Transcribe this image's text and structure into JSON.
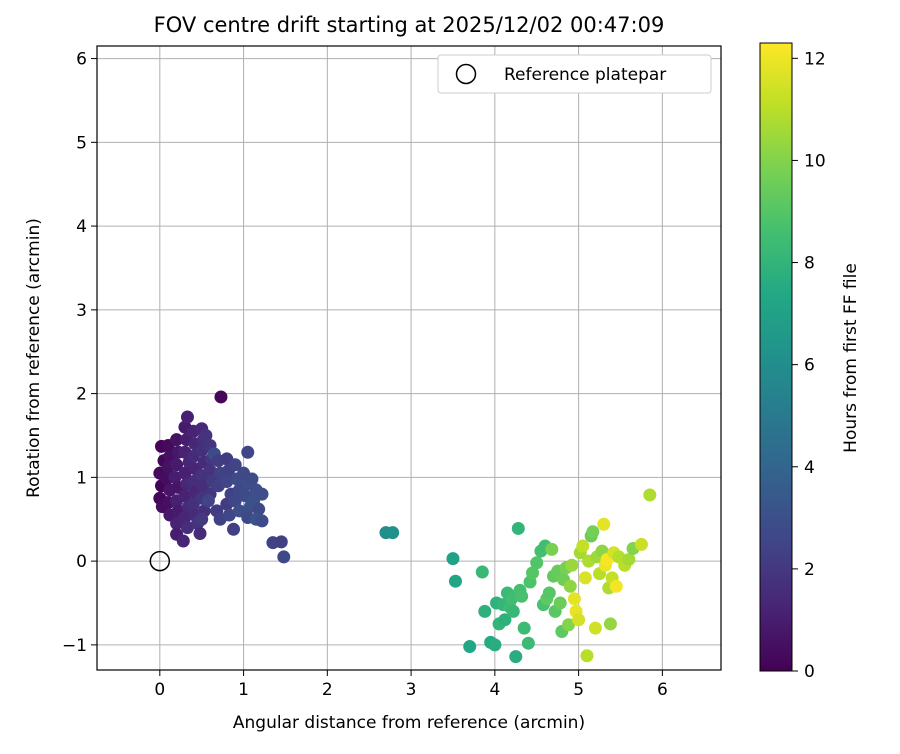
{
  "chart_data": {
    "type": "scatter",
    "title": "FOV centre drift starting at 2025/12/02 00:47:09",
    "xlabel": "Angular distance from reference (arcmin)",
    "ylabel": "Rotation from reference (arcmin)",
    "xlim": [
      -0.75,
      6.7
    ],
    "ylim": [
      -1.3,
      6.15
    ],
    "xticks": [
      0,
      1,
      2,
      3,
      4,
      5,
      6
    ],
    "yticks": [
      -1,
      0,
      1,
      2,
      3,
      4,
      5,
      6
    ],
    "xtick_labels": [
      "0",
      "1",
      "2",
      "3",
      "4",
      "5",
      "6"
    ],
    "ytick_labels": [
      "−1",
      "0",
      "1",
      "2",
      "3",
      "4",
      "5",
      "6"
    ],
    "grid": true,
    "legend": {
      "position": "top-right",
      "entries": [
        "Reference platepar"
      ]
    },
    "reference_point": {
      "label": "Reference platepar",
      "x": 0,
      "y": 0
    },
    "colorbar": {
      "label": "Hours from first FF file",
      "range": [
        0,
        12.3
      ],
      "ticks": [
        0,
        2,
        4,
        6,
        8,
        10,
        12
      ],
      "tick_labels": [
        "0",
        "2",
        "4",
        "6",
        "8",
        "10",
        "12"
      ],
      "colormap": "viridis"
    },
    "series": [
      {
        "name": "FOV centre",
        "points": [
          {
            "x": 0.73,
            "y": 1.96,
            "t": 0.2
          },
          {
            "x": 0.02,
            "y": 1.37,
            "t": 0.1
          },
          {
            "x": 0.05,
            "y": 1.2,
            "t": 0.2
          },
          {
            "x": 0.0,
            "y": 1.05,
            "t": 0.3
          },
          {
            "x": 0.02,
            "y": 0.9,
            "t": 0.1
          },
          {
            "x": 0.0,
            "y": 0.75,
            "t": 0.2
          },
          {
            "x": 0.03,
            "y": 0.65,
            "t": 0.4
          },
          {
            "x": 0.1,
            "y": 1.38,
            "t": 0.3
          },
          {
            "x": 0.12,
            "y": 1.25,
            "t": 0.5
          },
          {
            "x": 0.1,
            "y": 1.12,
            "t": 0.6
          },
          {
            "x": 0.08,
            "y": 0.98,
            "t": 0.4
          },
          {
            "x": 0.12,
            "y": 0.85,
            "t": 0.7
          },
          {
            "x": 0.1,
            "y": 0.7,
            "t": 0.5
          },
          {
            "x": 0.12,
            "y": 0.55,
            "t": 0.8
          },
          {
            "x": 0.2,
            "y": 1.45,
            "t": 0.6
          },
          {
            "x": 0.22,
            "y": 1.3,
            "t": 0.8
          },
          {
            "x": 0.2,
            "y": 1.15,
            "t": 0.9
          },
          {
            "x": 0.18,
            "y": 1.0,
            "t": 1.0
          },
          {
            "x": 0.22,
            "y": 0.88,
            "t": 0.7
          },
          {
            "x": 0.2,
            "y": 0.72,
            "t": 1.1
          },
          {
            "x": 0.22,
            "y": 0.6,
            "t": 0.9
          },
          {
            "x": 0.2,
            "y": 0.45,
            "t": 1.2
          },
          {
            "x": 0.2,
            "y": 0.32,
            "t": 1.0
          },
          {
            "x": 0.28,
            "y": 0.24,
            "t": 1.3
          },
          {
            "x": 0.3,
            "y": 1.6,
            "t": 0.9
          },
          {
            "x": 0.33,
            "y": 1.72,
            "t": 1.1
          },
          {
            "x": 0.32,
            "y": 1.45,
            "t": 1.0
          },
          {
            "x": 0.3,
            "y": 1.3,
            "t": 1.2
          },
          {
            "x": 0.35,
            "y": 1.18,
            "t": 1.3
          },
          {
            "x": 0.3,
            "y": 1.05,
            "t": 1.1
          },
          {
            "x": 0.32,
            "y": 0.92,
            "t": 1.4
          },
          {
            "x": 0.3,
            "y": 0.78,
            "t": 1.2
          },
          {
            "x": 0.34,
            "y": 0.65,
            "t": 1.5
          },
          {
            "x": 0.3,
            "y": 0.52,
            "t": 1.3
          },
          {
            "x": 0.33,
            "y": 0.4,
            "t": 1.6
          },
          {
            "x": 0.4,
            "y": 1.55,
            "t": 1.2
          },
          {
            "x": 0.42,
            "y": 1.4,
            "t": 1.4
          },
          {
            "x": 0.4,
            "y": 1.25,
            "t": 1.5
          },
          {
            "x": 0.43,
            "y": 1.1,
            "t": 1.3
          },
          {
            "x": 0.4,
            "y": 0.95,
            "t": 1.6
          },
          {
            "x": 0.42,
            "y": 0.82,
            "t": 1.4
          },
          {
            "x": 0.4,
            "y": 0.68,
            "t": 1.7
          },
          {
            "x": 0.42,
            "y": 0.55,
            "t": 1.5
          },
          {
            "x": 0.45,
            "y": 0.45,
            "t": 1.8
          },
          {
            "x": 0.5,
            "y": 1.58,
            "t": 1.4
          },
          {
            "x": 0.52,
            "y": 1.45,
            "t": 1.6
          },
          {
            "x": 0.5,
            "y": 1.32,
            "t": 1.7
          },
          {
            "x": 0.53,
            "y": 1.18,
            "t": 1.5
          },
          {
            "x": 0.5,
            "y": 1.02,
            "t": 1.8
          },
          {
            "x": 0.52,
            "y": 0.9,
            "t": 1.6
          },
          {
            "x": 0.5,
            "y": 0.75,
            "t": 1.9
          },
          {
            "x": 0.53,
            "y": 0.6,
            "t": 1.7
          },
          {
            "x": 0.5,
            "y": 0.5,
            "t": 2.0
          },
          {
            "x": 0.48,
            "y": 0.33,
            "t": 1.5
          },
          {
            "x": 0.55,
            "y": 1.5,
            "t": 1.8
          },
          {
            "x": 0.6,
            "y": 1.38,
            "t": 1.9
          },
          {
            "x": 0.62,
            "y": 1.22,
            "t": 2.0
          },
          {
            "x": 0.6,
            "y": 1.08,
            "t": 1.8
          },
          {
            "x": 0.63,
            "y": 0.95,
            "t": 2.1
          },
          {
            "x": 0.6,
            "y": 0.8,
            "t": 1.9
          },
          {
            "x": 0.58,
            "y": 0.72,
            "t": 2.5
          },
          {
            "x": 0.65,
            "y": 1.28,
            "t": 2.8
          },
          {
            "x": 0.7,
            "y": 1.2,
            "t": 2.2
          },
          {
            "x": 0.72,
            "y": 1.05,
            "t": 2.4
          },
          {
            "x": 0.7,
            "y": 0.9,
            "t": 2.3
          },
          {
            "x": 0.68,
            "y": 0.6,
            "t": 2.2
          },
          {
            "x": 0.72,
            "y": 0.5,
            "t": 2.4
          },
          {
            "x": 0.8,
            "y": 1.22,
            "t": 2.1
          },
          {
            "x": 0.82,
            "y": 1.08,
            "t": 2.3
          },
          {
            "x": 0.8,
            "y": 0.95,
            "t": 2.5
          },
          {
            "x": 0.85,
            "y": 0.8,
            "t": 2.4
          },
          {
            "x": 0.8,
            "y": 0.68,
            "t": 2.2
          },
          {
            "x": 0.83,
            "y": 0.55,
            "t": 2.6
          },
          {
            "x": 0.88,
            "y": 0.38,
            "t": 2.3
          },
          {
            "x": 0.9,
            "y": 1.15,
            "t": 2.5
          },
          {
            "x": 0.92,
            "y": 0.98,
            "t": 2.8
          },
          {
            "x": 0.95,
            "y": 0.85,
            "t": 2.7
          },
          {
            "x": 0.9,
            "y": 0.72,
            "t": 2.6
          },
          {
            "x": 0.95,
            "y": 0.6,
            "t": 2.9
          },
          {
            "x": 1.0,
            "y": 1.05,
            "t": 2.7
          },
          {
            "x": 1.05,
            "y": 0.92,
            "t": 2.9
          },
          {
            "x": 1.02,
            "y": 0.78,
            "t": 2.8
          },
          {
            "x": 1.08,
            "y": 0.65,
            "t": 3.0
          },
          {
            "x": 1.05,
            "y": 0.52,
            "t": 2.7
          },
          {
            "x": 1.1,
            "y": 0.98,
            "t": 2.8
          },
          {
            "x": 1.15,
            "y": 0.85,
            "t": 2.9
          },
          {
            "x": 1.12,
            "y": 0.72,
            "t": 3.0
          },
          {
            "x": 1.18,
            "y": 0.62,
            "t": 2.7
          },
          {
            "x": 1.15,
            "y": 0.5,
            "t": 3.1
          },
          {
            "x": 1.22,
            "y": 0.48,
            "t": 2.8
          },
          {
            "x": 1.22,
            "y": 0.8,
            "t": 2.9
          },
          {
            "x": 1.05,
            "y": 1.3,
            "t": 2.6
          },
          {
            "x": 1.35,
            "y": 0.22,
            "t": 2.4
          },
          {
            "x": 1.45,
            "y": 0.23,
            "t": 2.3
          },
          {
            "x": 1.48,
            "y": 0.05,
            "t": 2.7
          },
          {
            "x": 2.7,
            "y": 0.34,
            "t": 6.0
          },
          {
            "x": 2.78,
            "y": 0.34,
            "t": 6.1
          },
          {
            "x": 3.5,
            "y": 0.03,
            "t": 7.0
          },
          {
            "x": 3.53,
            "y": -0.24,
            "t": 7.2
          },
          {
            "x": 3.7,
            "y": -1.02,
            "t": 7.3
          },
          {
            "x": 3.85,
            "y": -0.13,
            "t": 8.2
          },
          {
            "x": 3.88,
            "y": -0.6,
            "t": 7.8
          },
          {
            "x": 3.95,
            "y": -0.97,
            "t": 7.5
          },
          {
            "x": 4.0,
            "y": -1.0,
            "t": 7.6
          },
          {
            "x": 4.02,
            "y": -0.5,
            "t": 7.9
          },
          {
            "x": 4.05,
            "y": -0.75,
            "t": 8.0
          },
          {
            "x": 4.1,
            "y": -0.52,
            "t": 8.1
          },
          {
            "x": 4.12,
            "y": -0.7,
            "t": 7.8
          },
          {
            "x": 4.15,
            "y": -0.38,
            "t": 8.3
          },
          {
            "x": 4.18,
            "y": -0.55,
            "t": 8.4
          },
          {
            "x": 4.2,
            "y": -0.45,
            "t": 8.5
          },
          {
            "x": 4.22,
            "y": -0.6,
            "t": 8.2
          },
          {
            "x": 4.25,
            "y": -1.14,
            "t": 7.6
          },
          {
            "x": 4.28,
            "y": 0.39,
            "t": 8.0
          },
          {
            "x": 4.3,
            "y": -0.35,
            "t": 8.6
          },
          {
            "x": 4.32,
            "y": -0.42,
            "t": 8.7
          },
          {
            "x": 4.35,
            "y": -0.8,
            "t": 8.4
          },
          {
            "x": 4.4,
            "y": -0.98,
            "t": 8.3
          },
          {
            "x": 4.42,
            "y": -0.25,
            "t": 8.8
          },
          {
            "x": 4.45,
            "y": -0.14,
            "t": 9.0
          },
          {
            "x": 4.5,
            "y": -0.02,
            "t": 8.9
          },
          {
            "x": 4.55,
            "y": 0.12,
            "t": 8.6
          },
          {
            "x": 4.58,
            "y": -0.52,
            "t": 8.7
          },
          {
            "x": 4.6,
            "y": 0.18,
            "t": 8.5
          },
          {
            "x": 4.62,
            "y": -0.45,
            "t": 9.2
          },
          {
            "x": 4.65,
            "y": -0.38,
            "t": 9.0
          },
          {
            "x": 4.68,
            "y": 0.14,
            "t": 9.8
          },
          {
            "x": 4.7,
            "y": -0.18,
            "t": 9.3
          },
          {
            "x": 4.72,
            "y": -0.6,
            "t": 9.1
          },
          {
            "x": 4.75,
            "y": -0.12,
            "t": 9.4
          },
          {
            "x": 4.78,
            "y": -0.5,
            "t": 9.5
          },
          {
            "x": 4.8,
            "y": -0.84,
            "t": 9.2
          },
          {
            "x": 4.82,
            "y": -0.22,
            "t": 9.6
          },
          {
            "x": 4.85,
            "y": -0.08,
            "t": 9.8
          },
          {
            "x": 4.88,
            "y": -0.76,
            "t": 10.0
          },
          {
            "x": 4.9,
            "y": -0.3,
            "t": 10.2
          },
          {
            "x": 4.92,
            "y": -0.05,
            "t": 10.4
          },
          {
            "x": 4.95,
            "y": -0.45,
            "t": 11.8
          },
          {
            "x": 4.97,
            "y": -0.6,
            "t": 11.9
          },
          {
            "x": 5.0,
            "y": -0.7,
            "t": 11.5
          },
          {
            "x": 5.02,
            "y": 0.1,
            "t": 10.6
          },
          {
            "x": 5.05,
            "y": 0.18,
            "t": 11.2
          },
          {
            "x": 5.08,
            "y": -0.2,
            "t": 11.6
          },
          {
            "x": 5.1,
            "y": -1.13,
            "t": 11.0
          },
          {
            "x": 5.12,
            "y": 0.0,
            "t": 10.8
          },
          {
            "x": 5.15,
            "y": 0.3,
            "t": 9.5
          },
          {
            "x": 5.17,
            "y": 0.35,
            "t": 9.7
          },
          {
            "x": 5.2,
            "y": -0.8,
            "t": 11.4
          },
          {
            "x": 5.22,
            "y": 0.05,
            "t": 10.5
          },
          {
            "x": 5.25,
            "y": -0.15,
            "t": 11.0
          },
          {
            "x": 5.28,
            "y": 0.12,
            "t": 10.2
          },
          {
            "x": 5.3,
            "y": 0.44,
            "t": 11.8
          },
          {
            "x": 5.32,
            "y": -0.05,
            "t": 12.0
          },
          {
            "x": 5.34,
            "y": 0.02,
            "t": 12.2
          },
          {
            "x": 5.36,
            "y": -0.32,
            "t": 10.8
          },
          {
            "x": 5.38,
            "y": -0.75,
            "t": 10.3
          },
          {
            "x": 5.4,
            "y": -0.2,
            "t": 11.2
          },
          {
            "x": 5.42,
            "y": 0.1,
            "t": 11.5
          },
          {
            "x": 5.45,
            "y": -0.3,
            "t": 12.1
          },
          {
            "x": 5.48,
            "y": 0.05,
            "t": 10.9
          },
          {
            "x": 5.55,
            "y": -0.05,
            "t": 11.0
          },
          {
            "x": 5.6,
            "y": 0.02,
            "t": 10.6
          },
          {
            "x": 5.65,
            "y": 0.15,
            "t": 10.0
          },
          {
            "x": 5.75,
            "y": 0.2,
            "t": 11.3
          },
          {
            "x": 5.85,
            "y": 0.79,
            "t": 10.8
          }
        ]
      }
    ]
  }
}
